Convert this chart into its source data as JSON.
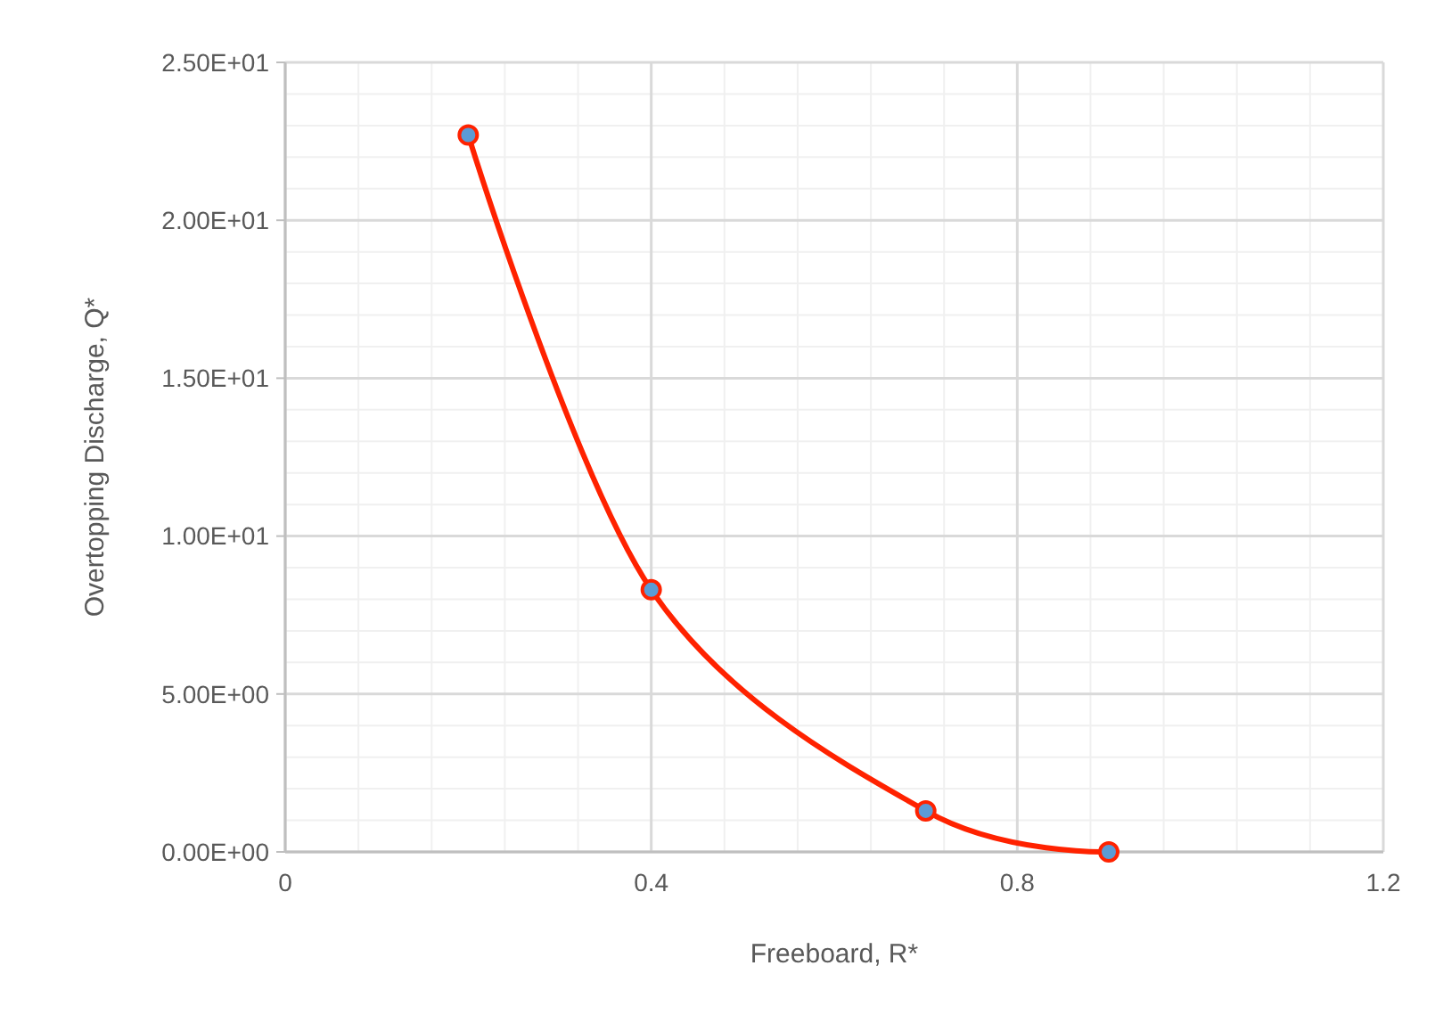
{
  "chart_data": {
    "type": "line",
    "xlabel": "Freeboard, R*",
    "ylabel": "Overtopping Discharge, Q*",
    "x": [
      0.2,
      0.4,
      0.7,
      0.9
    ],
    "series": [
      {
        "color": "#ff2200",
        "values": [
          22.7,
          8.3,
          1.3,
          0
        ]
      }
    ],
    "xlim": [
      0,
      1.2
    ],
    "xticks": [
      0,
      0.4,
      0.8,
      1.2
    ],
    "ylim": [
      0,
      25
    ],
    "yticks": [
      {
        "value": 0,
        "label": "0.00E+00"
      },
      {
        "value": 5,
        "label": "5.00E+00"
      },
      {
        "value": 10,
        "label": "1.00E+01"
      },
      {
        "value": 15,
        "label": "1.50E+01"
      },
      {
        "value": 20,
        "label": "2.00E+01"
      },
      {
        "value": 25,
        "label": "2.50E+01"
      }
    ],
    "grid": true,
    "marker": "circle",
    "line_style": "solid"
  }
}
